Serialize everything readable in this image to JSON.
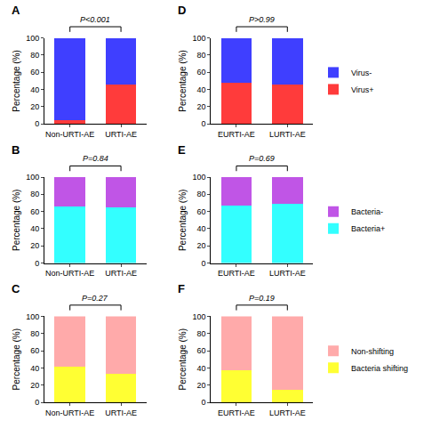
{
  "chart_data": [
    {
      "type": "bar",
      "title": "A",
      "stacked": true,
      "annotation": "P<0.001",
      "ylabel": "Percentage (%)",
      "categories": [
        "Non-URTI-AE",
        "URTI-AE"
      ],
      "series": [
        {
          "name": "Virus+",
          "color": "#ff3b3b",
          "values": [
            4,
            46
          ]
        },
        {
          "name": "Virus-",
          "color": "#3f3fff",
          "values": [
            96,
            54
          ]
        }
      ],
      "ylim": [
        0,
        100
      ],
      "yticks": [
        0,
        20,
        40,
        60,
        80,
        100
      ]
    },
    {
      "type": "bar",
      "title": "B",
      "stacked": true,
      "annotation": "P=0.84",
      "ylabel": "Percentage (%)",
      "categories": [
        "Non-URTI-AE",
        "URTI-AE"
      ],
      "series": [
        {
          "name": "Bacteria+",
          "color": "#33ffff",
          "values": [
            66,
            65
          ]
        },
        {
          "name": "Bacteria-",
          "color": "#c055e6",
          "values": [
            34,
            35
          ]
        }
      ],
      "ylim": [
        0,
        100
      ],
      "yticks": [
        0,
        20,
        40,
        60,
        80,
        100
      ]
    },
    {
      "type": "bar",
      "title": "C",
      "stacked": true,
      "annotation": "P=0.27",
      "ylabel": "Percentage (%)",
      "categories": [
        "Non-URTI-AE",
        "URTI-AE"
      ],
      "series": [
        {
          "name": "Bacteria shifting",
          "color": "#ffff33",
          "values": [
            41,
            33
          ]
        },
        {
          "name": "Non-shifting",
          "color": "#ffaaaa",
          "values": [
            59,
            67
          ]
        }
      ],
      "ylim": [
        0,
        100
      ],
      "yticks": [
        0,
        20,
        40,
        60,
        80,
        100
      ]
    },
    {
      "type": "bar",
      "title": "D",
      "stacked": true,
      "annotation": "P>0.99",
      "ylabel": "Percentage (%)",
      "legend": "right",
      "categories": [
        "EURTI-AE",
        "LURTI-AE"
      ],
      "series": [
        {
          "name": "Virus+",
          "color": "#ff3b3b",
          "values": [
            48,
            46
          ]
        },
        {
          "name": "Virus-",
          "color": "#3f3fff",
          "values": [
            52,
            54
          ]
        }
      ],
      "ylim": [
        0,
        100
      ],
      "yticks": [
        0,
        20,
        40,
        60,
        80,
        100
      ]
    },
    {
      "type": "bar",
      "title": "E",
      "stacked": true,
      "annotation": "P=0.69",
      "ylabel": "Percentage (%)",
      "legend": "right",
      "categories": [
        "EURTI-AE",
        "LURTI-AE"
      ],
      "series": [
        {
          "name": "Bacteria+",
          "color": "#33ffff",
          "values": [
            67,
            69
          ]
        },
        {
          "name": "Bacteria-",
          "color": "#c055e6",
          "values": [
            33,
            31
          ]
        }
      ],
      "ylim": [
        0,
        100
      ],
      "yticks": [
        0,
        20,
        40,
        60,
        80,
        100
      ]
    },
    {
      "type": "bar",
      "title": "F",
      "stacked": true,
      "annotation": "P=0.19",
      "ylabel": "Percentage (%)",
      "legend": "right",
      "categories": [
        "EURTI-AE",
        "LURTI-AE"
      ],
      "series": [
        {
          "name": "Bacteria shifting",
          "color": "#ffff33",
          "values": [
            37,
            15
          ]
        },
        {
          "name": "Non-shifting",
          "color": "#ffaaaa",
          "values": [
            63,
            85
          ]
        }
      ],
      "ylim": [
        0,
        100
      ],
      "yticks": [
        0,
        20,
        40,
        60,
        80,
        100
      ]
    }
  ]
}
